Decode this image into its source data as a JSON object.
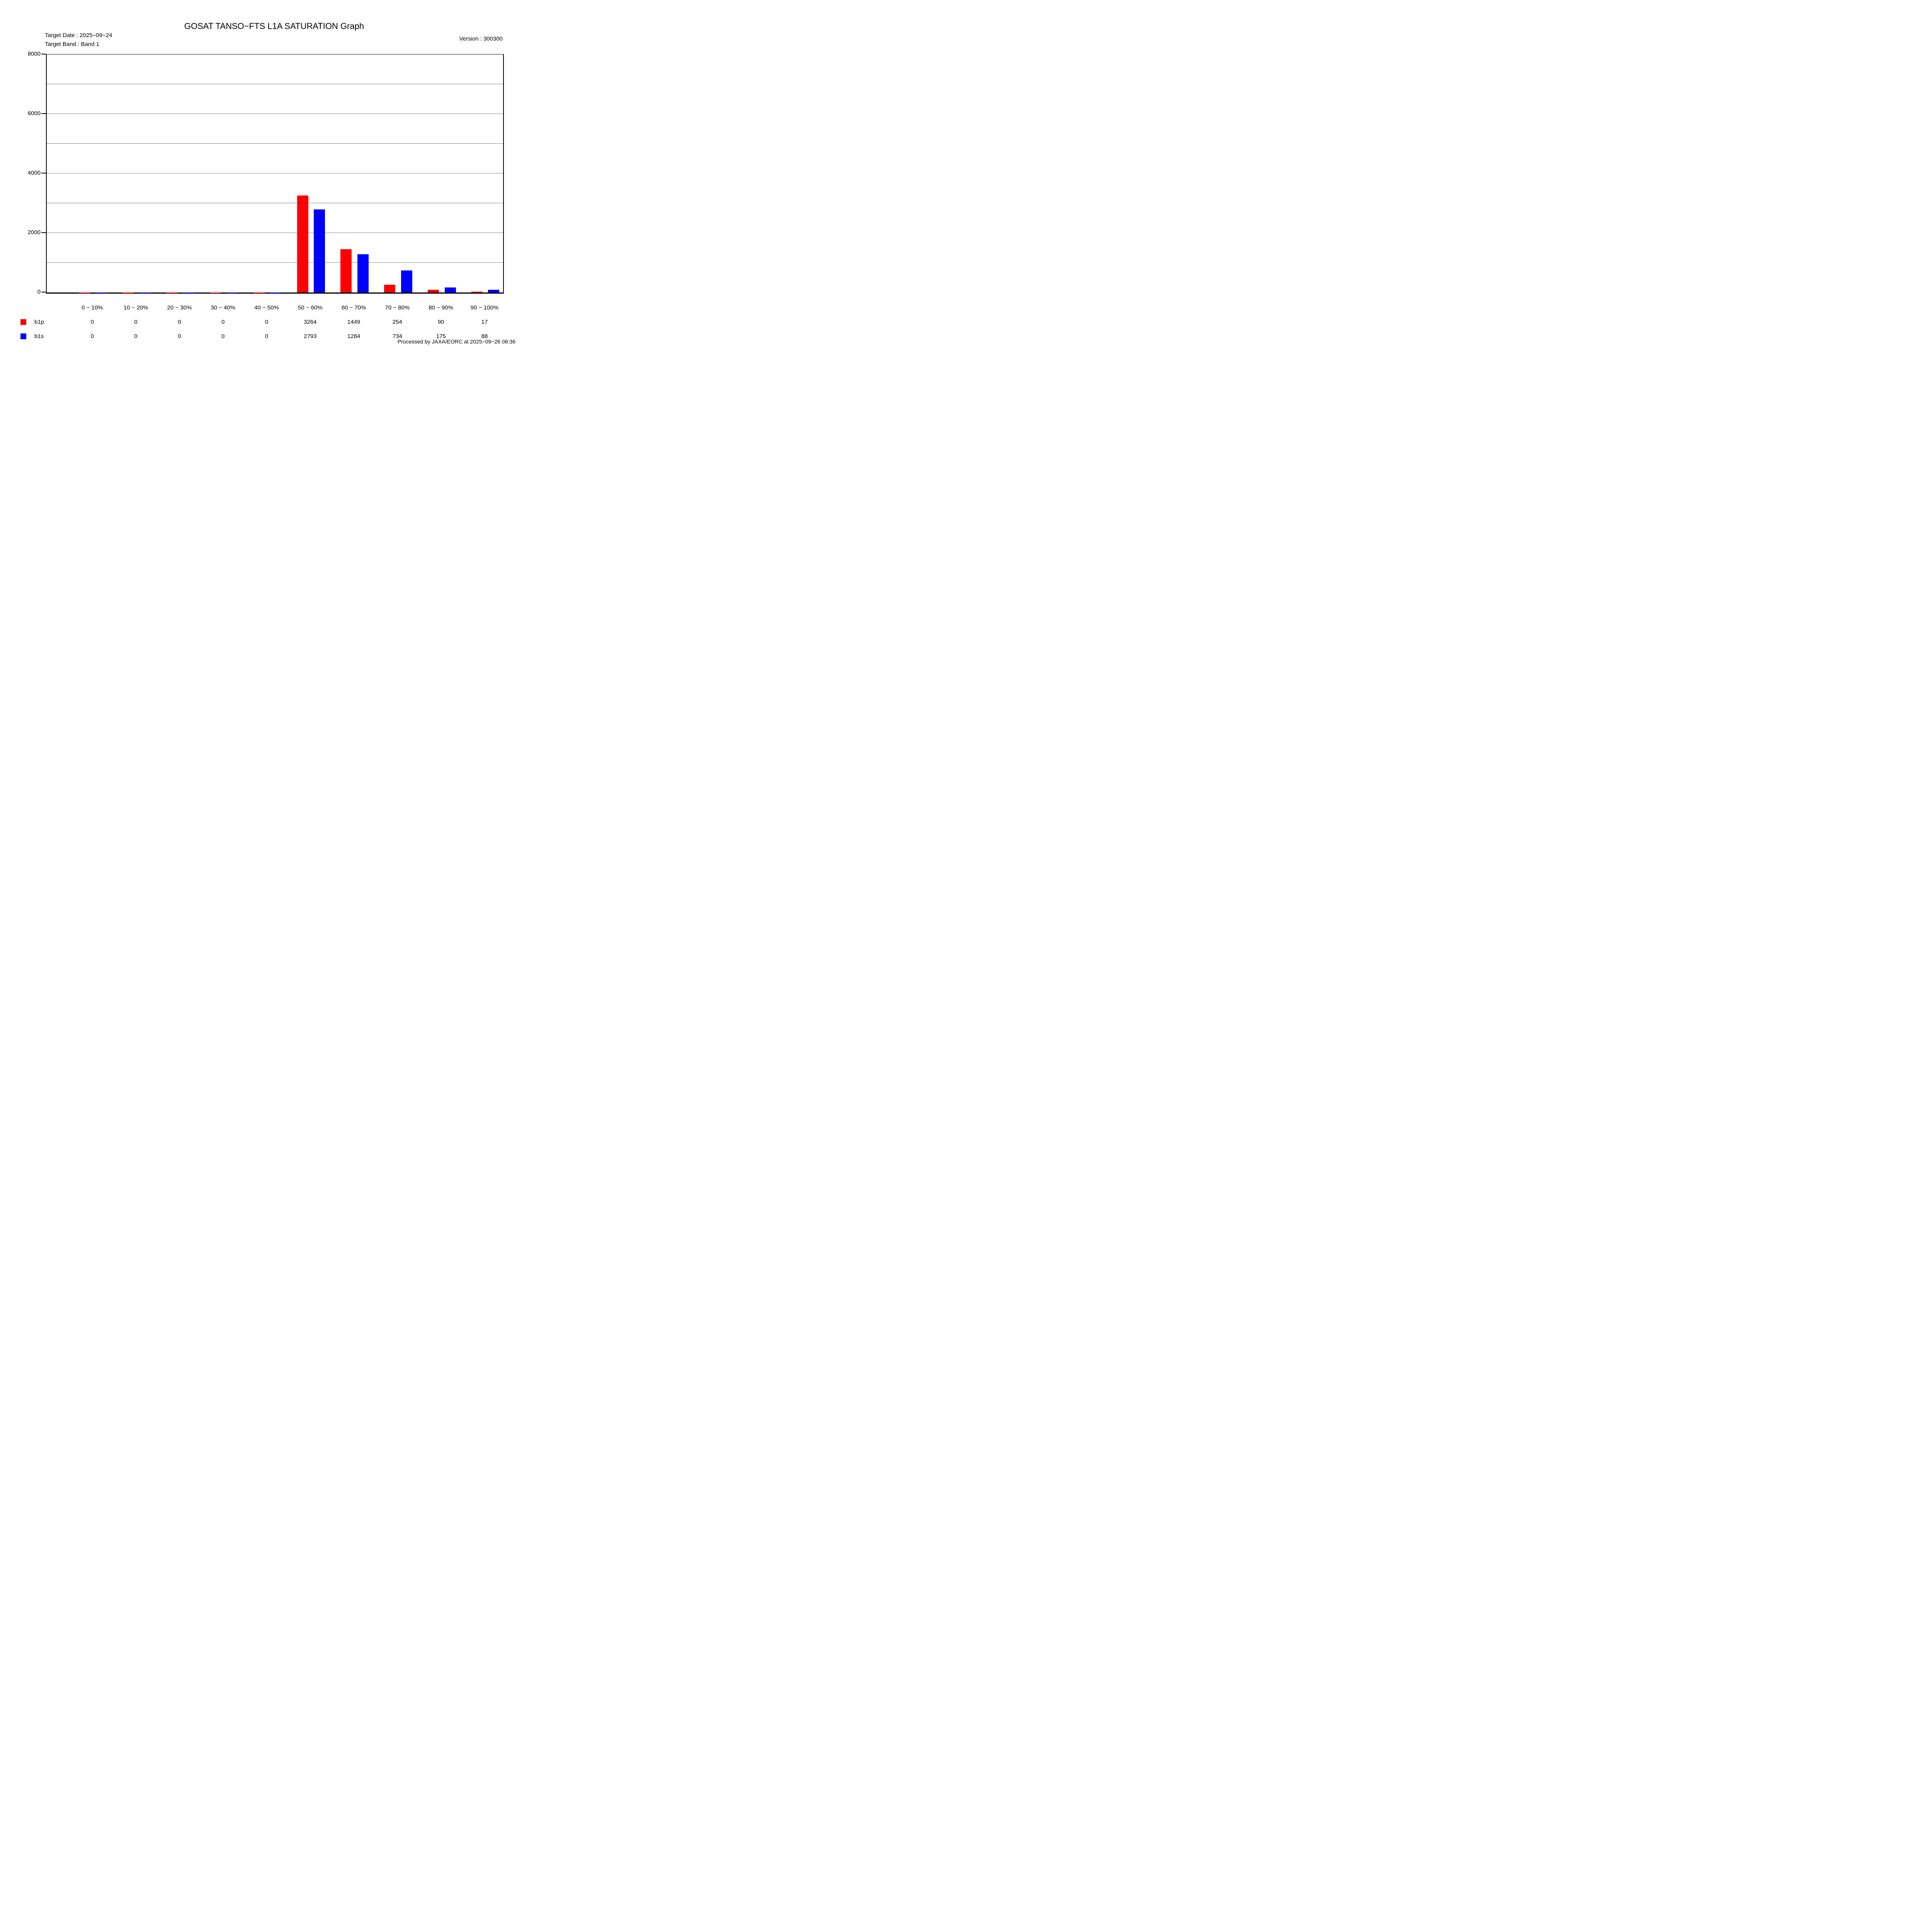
{
  "title": "GOSAT TANSO−FTS L1A SATURATION Graph",
  "header": {
    "target_date": "Target Date : 2025−09−24",
    "target_band": "Target Band : Band 1",
    "version": "Version : 300300"
  },
  "footer": {
    "processed": "Processed by JAXA/EORC at 2025−09−26 08:36"
  },
  "chart_data": {
    "type": "bar",
    "title": "GOSAT TANSO−FTS L1A SATURATION Graph",
    "categories": [
      "0 − 10%",
      "10 − 20%",
      "20 − 30%",
      "30 − 40%",
      "40 − 50%",
      "50 − 60%",
      "60 − 70%",
      "70 − 80%",
      "80 − 90%",
      "90 − 100%"
    ],
    "series": [
      {
        "name": "b1p",
        "color": "#ff0000",
        "values": [
          0,
          0,
          0,
          0,
          0,
          3264,
          1449,
          254,
          90,
          17
        ]
      },
      {
        "name": "b1s",
        "color": "#0000ff",
        "values": [
          0,
          0,
          0,
          0,
          0,
          2793,
          1284,
          734,
          175,
          88
        ]
      }
    ],
    "xlabel": "",
    "ylabel": "",
    "ylim": [
      0,
      8000
    ],
    "yticks": [
      0,
      2000,
      4000,
      6000,
      8000
    ],
    "grid_interval": 1000,
    "grid": true,
    "grid_color": "#808080",
    "legend_position": "bottom-left-table"
  }
}
